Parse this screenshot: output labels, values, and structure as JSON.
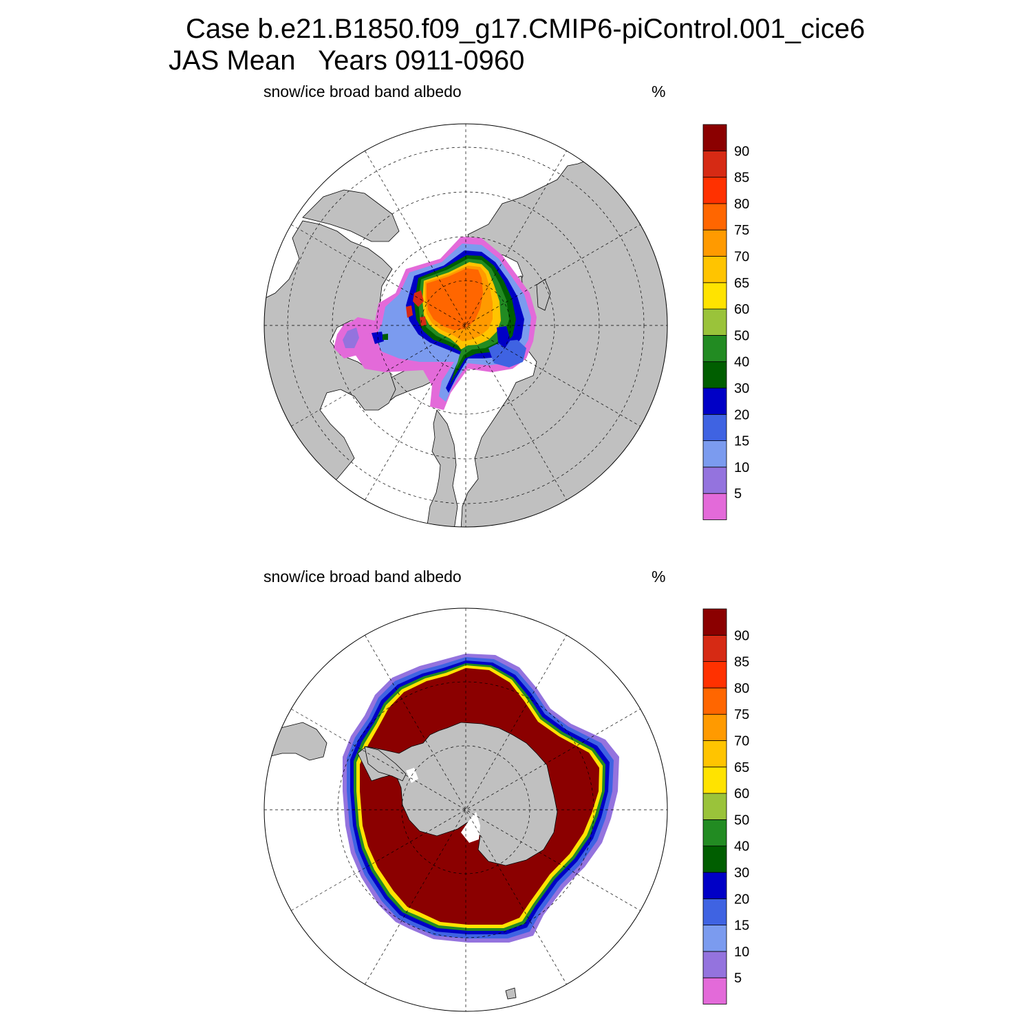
{
  "title": {
    "case_line": "Case b.e21.B1850.f09_g17.CMIP6-piControl.001_cice6",
    "period_line": "JAS Mean   Years 0911-0960"
  },
  "panels": {
    "north": {
      "label": "snow/ice broad band albedo",
      "units": "%"
    },
    "south": {
      "label": "snow/ice broad band albedo",
      "units": "%"
    }
  },
  "colorbar": {
    "tick_labels": [
      "5",
      "10",
      "15",
      "20",
      "30",
      "40",
      "50",
      "60",
      "65",
      "70",
      "75",
      "80",
      "85",
      "90"
    ],
    "colors": [
      "#e36ad9",
      "#9473de",
      "#7b9bef",
      "#3f63e2",
      "#0000c6",
      "#005e00",
      "#228b22",
      "#9ac33a",
      "#ffe300",
      "#ffc400",
      "#ff9a00",
      "#ff6600",
      "#ff3100",
      "#d62a14",
      "#8b0000"
    ]
  },
  "map_colors": {
    "land": "#c0c0c0",
    "ocean": "#ffffff",
    "outline": "#000000"
  }
}
